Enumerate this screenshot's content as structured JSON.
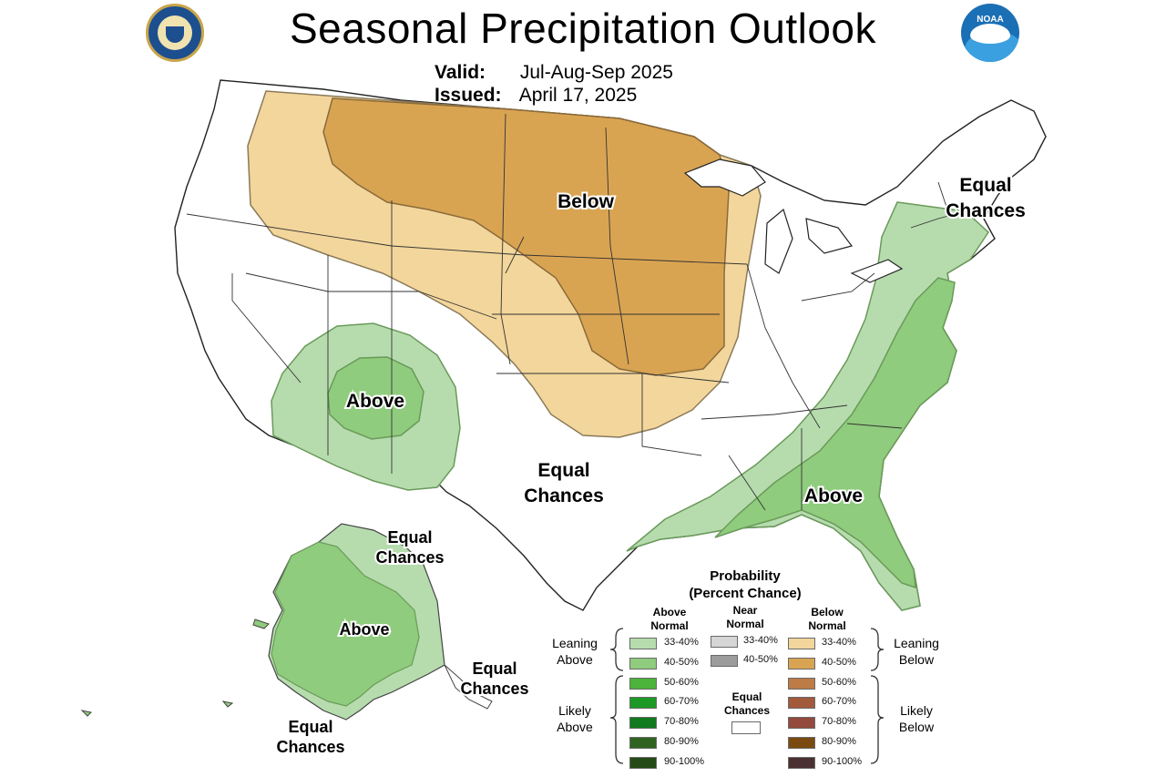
{
  "header": {
    "title": "Seasonal Precipitation Outlook",
    "valid_label": "Valid:",
    "valid_value": "Jul-Aug-Sep 2025",
    "issued_label": "Issued:",
    "issued_value": "April 17, 2025"
  },
  "logos": {
    "left": "department-of-commerce-seal",
    "right": "noaa-logo",
    "right_text": "NOAA"
  },
  "map_labels": {
    "below_center": "Below",
    "equal_ne_1": "Equal",
    "equal_ne_2": "Chances",
    "above_sw": "Above",
    "equal_sw_1": "Equal",
    "equal_sw_2": "Chances",
    "above_se": "Above",
    "ak_equal_n_1": "Equal",
    "ak_equal_n_2": "Chances",
    "ak_above": "Above",
    "ak_equal_e_1": "Equal",
    "ak_equal_e_2": "Chances",
    "ak_equal_s_1": "Equal",
    "ak_equal_s_2": "Chances"
  },
  "legend": {
    "title_1": "Probability",
    "title_2": "(Percent Chance)",
    "above_head_1": "Above",
    "above_head_2": "Normal",
    "near_head_1": "Near",
    "near_head_2": "Normal",
    "below_head_1": "Below",
    "below_head_2": "Normal",
    "leaning_above_1": "Leaning",
    "leaning_above_2": "Above",
    "likely_above_1": "Likely",
    "likely_above_2": "Above",
    "leaning_below_1": "Leaning",
    "leaning_below_2": "Below",
    "likely_below_1": "Likely",
    "likely_below_2": "Below",
    "equal_1": "Equal",
    "equal_2": "Chances",
    "above": [
      {
        "label": "33-40%",
        "color": "#b6dcae"
      },
      {
        "label": "40-50%",
        "color": "#8fcc7d"
      },
      {
        "label": "50-60%",
        "color": "#4cb43a"
      },
      {
        "label": "60-70%",
        "color": "#1d9a26"
      },
      {
        "label": "70-80%",
        "color": "#0f7a1e"
      },
      {
        "label": "80-90%",
        "color": "#2f6420"
      },
      {
        "label": "90-100%",
        "color": "#244a16"
      }
    ],
    "near": [
      {
        "label": "33-40%",
        "color": "#d6d6d6"
      },
      {
        "label": "40-50%",
        "color": "#9c9c9c"
      }
    ],
    "below": [
      {
        "label": "33-40%",
        "color": "#f3d69b"
      },
      {
        "label": "40-50%",
        "color": "#d9a452"
      },
      {
        "label": "50-60%",
        "color": "#bd7b45"
      },
      {
        "label": "60-70%",
        "color": "#a35a3a"
      },
      {
        "label": "70-80%",
        "color": "#934a3c"
      },
      {
        "label": "80-90%",
        "color": "#7a4a10"
      },
      {
        "label": "90-100%",
        "color": "#4a3030"
      }
    ],
    "equal_color": "#ffffff"
  }
}
